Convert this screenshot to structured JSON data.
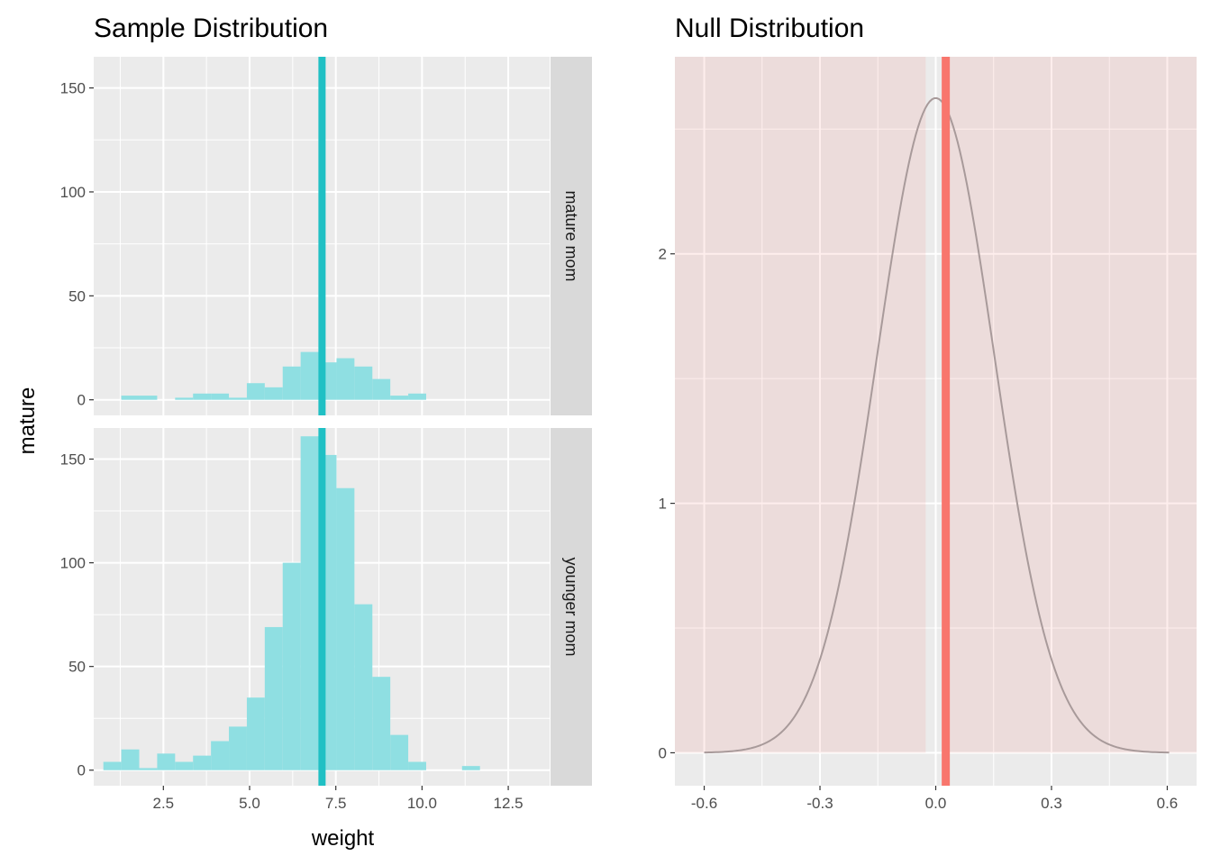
{
  "chart_data": [
    {
      "type": "bar",
      "title": "Sample Distribution",
      "xlabel": "weight",
      "ylabel": "mature",
      "xlim": [
        0.48,
        13.7
      ],
      "ylim": [
        -7.5,
        165
      ],
      "x_ticks": [
        {
          "value": 2.5,
          "label": "2.5"
        },
        {
          "value": 5.0,
          "label": "5.0"
        },
        {
          "value": 7.5,
          "label": "7.5"
        },
        {
          "value": 10.0,
          "label": "10.0"
        },
        {
          "value": 12.5,
          "label": "12.5"
        }
      ],
      "y_ticks": [
        {
          "value": 0,
          "label": "0"
        },
        {
          "value": 50,
          "label": "50"
        },
        {
          "value": 100,
          "label": "100"
        },
        {
          "value": 150,
          "label": "150"
        }
      ],
      "grid": true,
      "bin_width": 0.52,
      "bin_start": 0.76,
      "fill_color": "#8fdfe2",
      "mean_line": {
        "x": 7.1,
        "color": "#20c0c4"
      },
      "panels": [
        {
          "strip_label": "mature mom",
          "values": [
            0,
            2,
            2,
            0,
            1,
            3,
            3,
            1,
            8,
            6,
            16,
            23,
            18,
            20,
            16,
            10,
            2,
            3,
            0,
            0,
            0,
            0,
            0
          ]
        },
        {
          "strip_label": "younger mom",
          "values": [
            4,
            10,
            1,
            8,
            4,
            7,
            14,
            21,
            35,
            69,
            100,
            161,
            152,
            136,
            80,
            45,
            17,
            4,
            0,
            0,
            2,
            0
          ]
        }
      ]
    },
    {
      "type": "line",
      "title": "Null Distribution",
      "xlabel": "",
      "ylabel": "",
      "xlim": [
        -0.676,
        0.676
      ],
      "ylim": [
        -0.132,
        2.79
      ],
      "x_ticks": [
        {
          "value": -0.6,
          "label": "-0.6"
        },
        {
          "value": -0.3,
          "label": "-0.3"
        },
        {
          "value": 0.0,
          "label": "0.0"
        },
        {
          "value": 0.3,
          "label": "0.3"
        },
        {
          "value": 0.6,
          "label": "0.6"
        }
      ],
      "y_ticks": [
        {
          "value": 0,
          "label": "0"
        },
        {
          "value": 1,
          "label": "1"
        },
        {
          "value": 2,
          "label": "2"
        }
      ],
      "grid": true,
      "density": {
        "distribution": "normal",
        "mean": 0.0,
        "sd": 0.152,
        "x_range": [
          -0.6,
          0.605
        ],
        "color": "#a89a9a"
      },
      "observed_stat": {
        "x": 0.026,
        "color": "#f8766d"
      },
      "shade": {
        "color": "#f8766d",
        "regions": [
          [
            -0.676,
            -0.026
          ],
          [
            0.026,
            0.676
          ]
        ]
      }
    }
  ]
}
